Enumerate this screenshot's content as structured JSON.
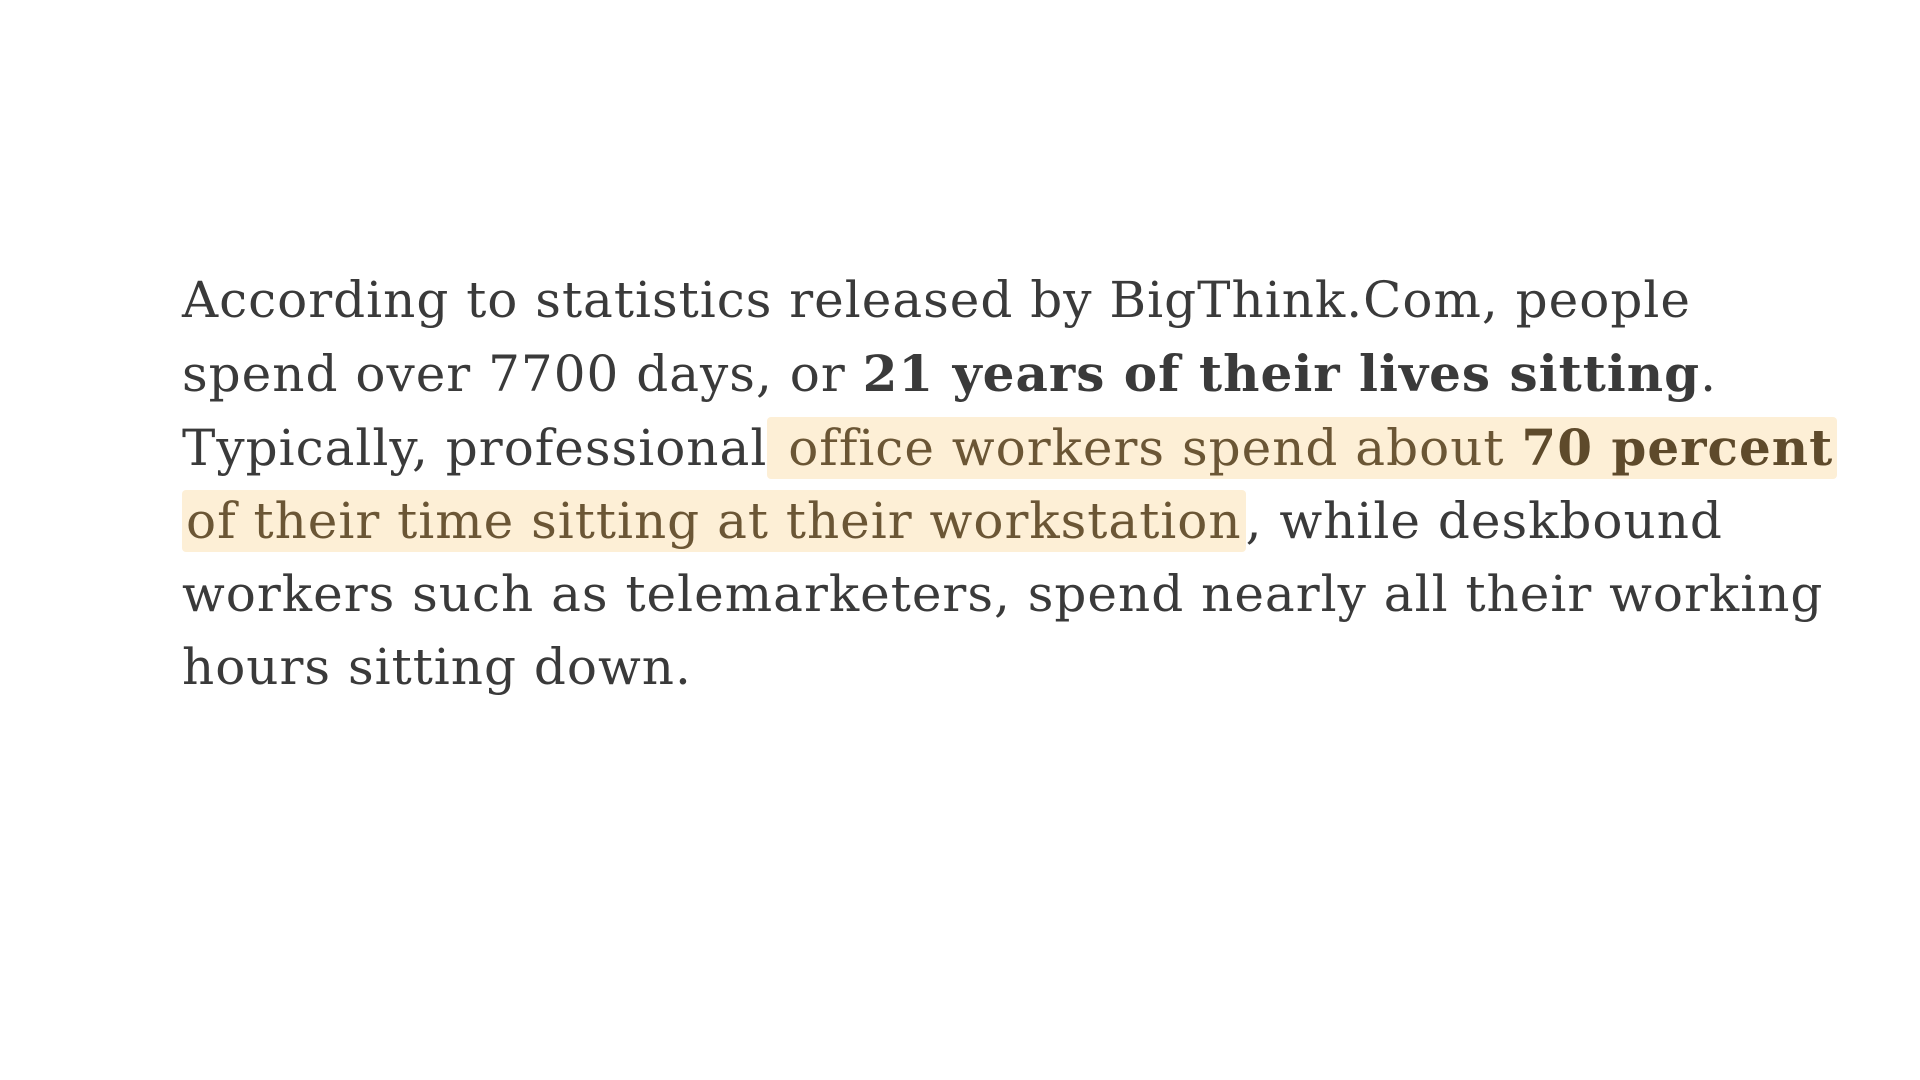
{
  "article": {
    "line1": "According to statistics released by BigThink.Com, people",
    "line2_a": "spend over 7700 days, or ",
    "line2_bold": "21 years of their lives sitting",
    "line2_b": ".",
    "line3_a": "Typically, professional",
    "line3_highlight_a": " office workers spend about ",
    "line3_highlight_bold": "70 percent",
    "line4_highlight": "of their time sitting at their workstation",
    "line4_b": ", while deskbound",
    "line5": "workers such as telemarketers, spend nearly all their working",
    "line6": "hours sitting down."
  },
  "colors": {
    "text": "#3a3a3a",
    "highlight_background": "#fdefd6",
    "highlight_text": "#6b5635",
    "page_background": "#ffffff"
  }
}
